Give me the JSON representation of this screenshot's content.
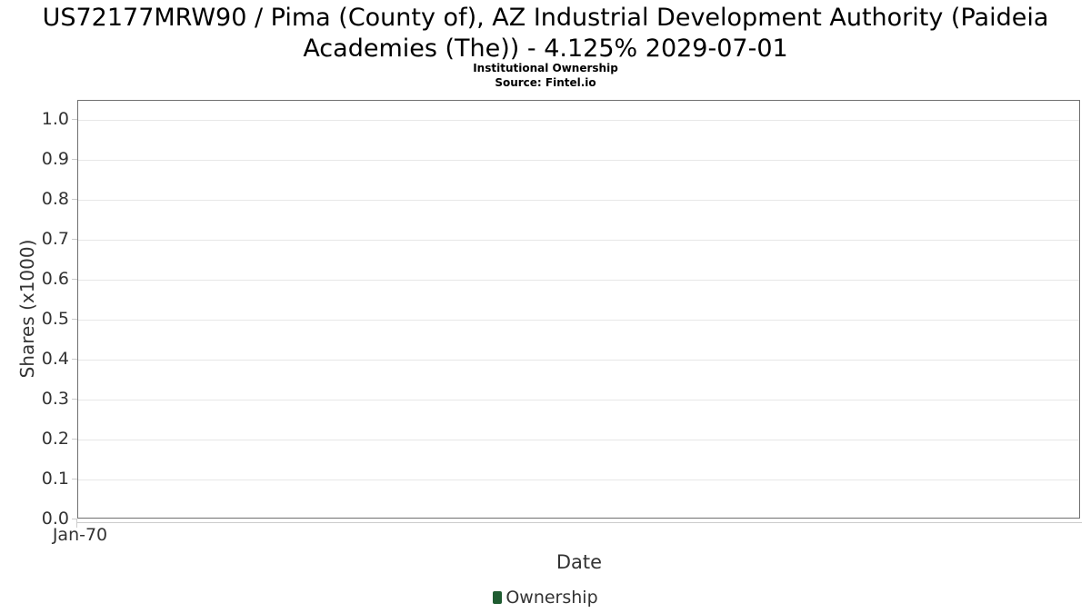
{
  "header": {
    "title": "US72177MRW90 / Pima (County of), AZ Industrial Development Authority (Paideia Academies (The)) - 4.125% 2029-07-01",
    "subtitle": "Institutional Ownership",
    "source": "Source: Fintel.io"
  },
  "chart_data": {
    "type": "area",
    "title": "US72177MRW90 / Pima (County of), AZ Industrial Development Authority (Paideia Academies (The)) - 4.125% 2029-07-01",
    "subtitle": "Institutional Ownership",
    "source": "Source: Fintel.io",
    "xlabel": "Date",
    "ylabel": "Shares (x1000)",
    "x_tick_labels": [
      "Jan-70"
    ],
    "y_tick_labels": [
      "1.0",
      "0.9",
      "0.8",
      "0.7",
      "0.6",
      "0.5",
      "0.4",
      "0.3",
      "0.2",
      "0.1",
      "0.0"
    ],
    "ylim": [
      0.0,
      1.05
    ],
    "grid": "horizontal",
    "legend_position": "bottom-center",
    "series": [
      {
        "name": "Ownership",
        "color": "#1f5c31",
        "x": [],
        "values": []
      }
    ]
  },
  "legend": {
    "items": [
      {
        "label": "Ownership",
        "color": "#1f5c31"
      }
    ]
  },
  "colors": {
    "plot_border": "#707070",
    "gridline": "#e7e7e7",
    "tick": "#cccccc",
    "axis_line": "#cccccc",
    "title_text": "#000000",
    "label_text": "#333333",
    "legend_marker": "#1f5c31"
  }
}
